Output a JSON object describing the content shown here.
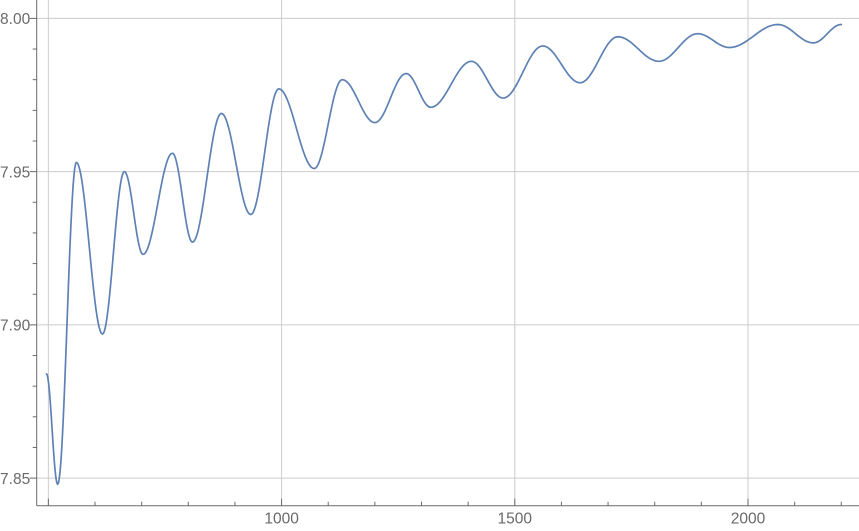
{
  "figure": {
    "background_color": "#ffffff"
  },
  "chart_data": {
    "type": "line",
    "title": "",
    "xlabel": "",
    "ylabel": "",
    "xlim": [
      475,
      2238
    ],
    "ylim": [
      7.841,
      8.006
    ],
    "grid": true,
    "legend": false,
    "axis_color": "#6a6a6a",
    "grid_color": "#cccccc",
    "tick_label_color": "#696969",
    "x_major_ticks": [
      500,
      1000,
      1500,
      2000
    ],
    "x_tick_labels": [
      {
        "value": 1000,
        "label": "1000"
      },
      {
        "value": 1500,
        "label": "1500"
      },
      {
        "value": 2000,
        "label": "2000"
      }
    ],
    "x_minor_ticks": [
      600,
      700,
      800,
      900,
      1100,
      1200,
      1300,
      1400,
      1600,
      1700,
      1800,
      1900,
      2100,
      2200
    ],
    "x_gridlines": [
      500,
      1000,
      1500,
      2000
    ],
    "y_major_ticks": [
      7.85,
      7.9,
      7.95,
      8.0
    ],
    "y_tick_labels": [
      {
        "value": 7.85,
        "label": "7.85"
      },
      {
        "value": 7.9,
        "label": "7.90"
      },
      {
        "value": 7.95,
        "label": "7.95"
      },
      {
        "value": 8.0,
        "label": "8.00"
      }
    ],
    "y_minor_ticks": [
      7.86,
      7.87,
      7.88,
      7.89,
      7.91,
      7.92,
      7.93,
      7.94,
      7.96,
      7.97,
      7.98,
      7.99
    ],
    "y_gridlines": [
      7.85,
      7.9,
      7.95,
      8.0
    ],
    "series": [
      {
        "name": "series-1",
        "color": "#5e81b5",
        "stroke_width": 1.7,
        "interpolation": "cosine-through-extrema",
        "points": [
          [
            496,
            7.884
          ],
          [
            520,
            7.848
          ],
          [
            560,
            7.953
          ],
          [
            616,
            7.897
          ],
          [
            663,
            7.95
          ],
          [
            703,
            7.923
          ],
          [
            766,
            7.956
          ],
          [
            809,
            7.927
          ],
          [
            871,
            7.969
          ],
          [
            934,
            7.936
          ],
          [
            994,
            7.977
          ],
          [
            1070,
            7.951
          ],
          [
            1130,
            7.98
          ],
          [
            1200,
            7.966
          ],
          [
            1267,
            7.982
          ],
          [
            1320,
            7.971
          ],
          [
            1407,
            7.986
          ],
          [
            1475,
            7.974
          ],
          [
            1560,
            7.991
          ],
          [
            1640,
            7.979
          ],
          [
            1721,
            7.994
          ],
          [
            1809,
            7.986
          ],
          [
            1892,
            7.995
          ],
          [
            1960,
            7.9905
          ],
          [
            2064,
            7.998
          ],
          [
            2140,
            7.992
          ],
          [
            2200,
            7.998
          ]
        ]
      }
    ]
  }
}
